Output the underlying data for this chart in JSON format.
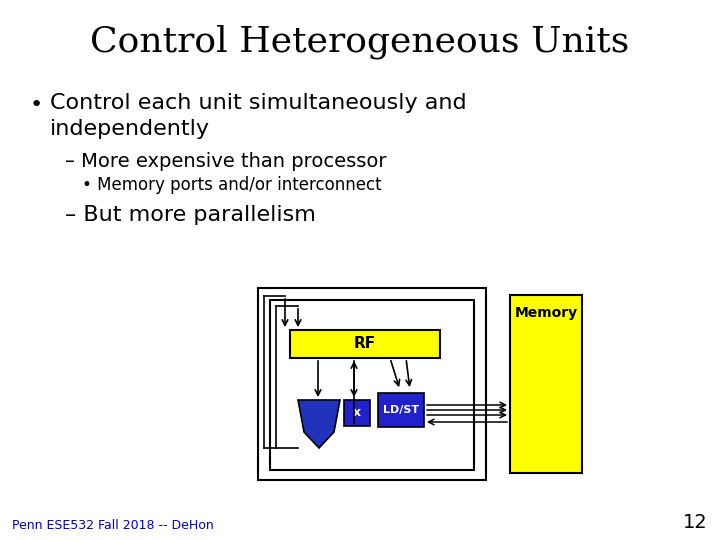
{
  "title": "Control Heterogeneous Units",
  "bullet1_text": "Control each unit simultaneously and\nindependently",
  "sub1": "– More expensive than processor",
  "subsub1": "• Memory ports and/or interconnect",
  "sub2": "– But more parallelism",
  "footer": "Penn ESE532 Fall 2018 -- DeHon",
  "page_num": "12",
  "title_color": "#000000",
  "text_color": "#000000",
  "footer_color": "#0000cc",
  "rf_box_color": "#ffff00",
  "x_box_color": "#2222cc",
  "ldst_box_color": "#2222cc",
  "memory_box_color": "#ffff00",
  "alu_color": "#2233bb",
  "outer_box_color": "#000000",
  "title_fontsize": 26,
  "bullet_fontsize": 16,
  "sub_fontsize": 14,
  "subsub_fontsize": 12,
  "footer_fontsize": 9,
  "pagenum_fontsize": 14
}
